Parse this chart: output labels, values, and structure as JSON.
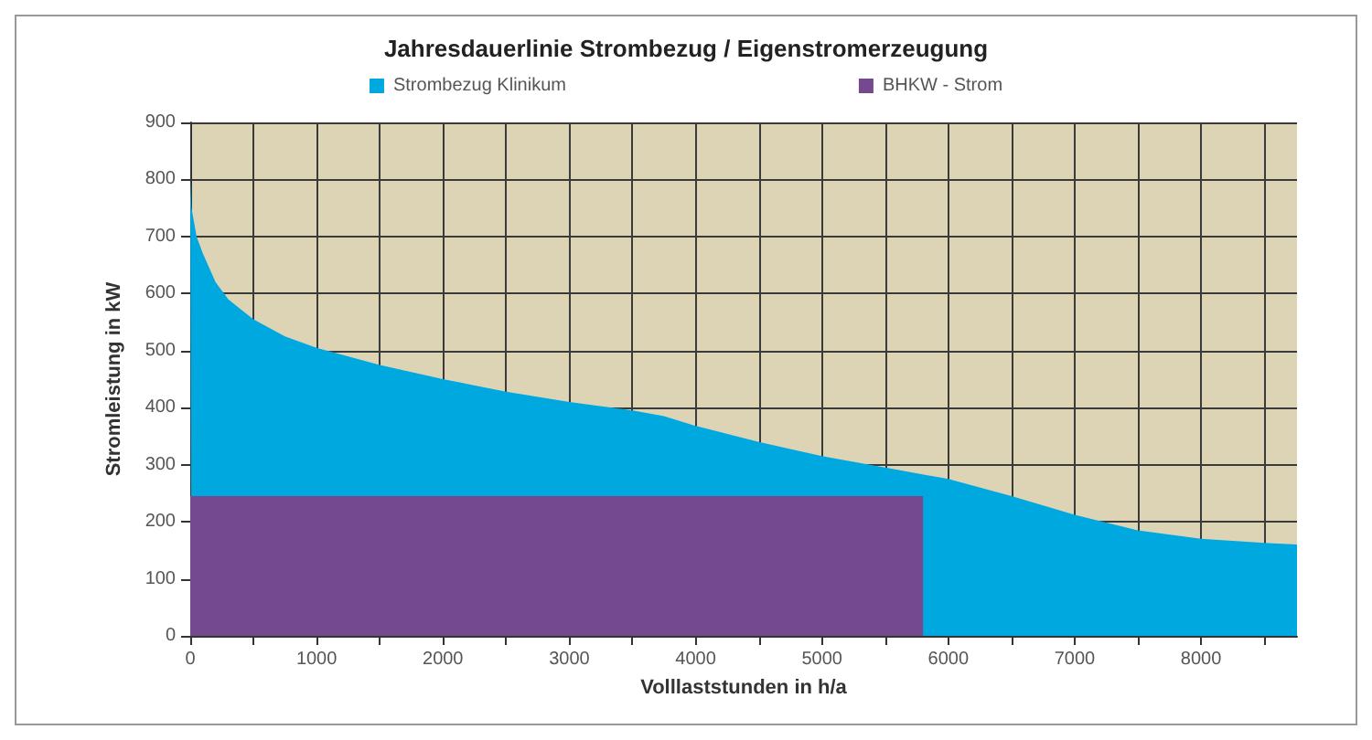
{
  "chart_data": {
    "type": "area",
    "title": "Jahresdauerlinie Strombezug / Eigenstromerzeugung",
    "xlabel": "Volllaststunden in h/a",
    "ylabel": "Stromleistung in kW",
    "series": [
      {
        "name": "Strombezug Klinikum",
        "color": "#00a8e0",
        "x": [
          0,
          10,
          50,
          100,
          200,
          300,
          500,
          750,
          1000,
          1500,
          2000,
          2500,
          3000,
          3500,
          3750,
          4000,
          4500,
          5000,
          5500,
          6000,
          6500,
          7000,
          7500,
          8000,
          8500,
          8760
        ],
        "values": [
          800,
          750,
          700,
          670,
          620,
          590,
          555,
          525,
          505,
          475,
          450,
          428,
          410,
          395,
          385,
          368,
          340,
          315,
          295,
          275,
          245,
          212,
          185,
          170,
          163,
          160
        ]
      },
      {
        "name": "BHKW - Strom",
        "color": "#74498f",
        "x": [
          0,
          5800
        ],
        "values": [
          245,
          245
        ]
      }
    ],
    "xlim": [
      0,
      8760
    ],
    "xticks": [
      0,
      {
        "value": 500,
        "label": null
      },
      1000,
      {
        "value": 1500,
        "label": null
      },
      2000,
      {
        "value": 2500,
        "label": null
      },
      3000,
      {
        "value": 3500,
        "label": null
      },
      4000,
      {
        "value": 4500,
        "label": null
      },
      5000,
      {
        "value": 5500,
        "label": null
      },
      6000,
      {
        "value": 6500,
        "label": null
      },
      7000,
      {
        "value": 7500,
        "label": null
      },
      8000,
      {
        "value": 8500,
        "label": null
      }
    ],
    "ylim": [
      0,
      900
    ],
    "yticks": [
      0,
      100,
      200,
      300,
      400,
      500,
      600,
      700,
      800,
      900
    ],
    "grid": true,
    "legend": "top"
  }
}
